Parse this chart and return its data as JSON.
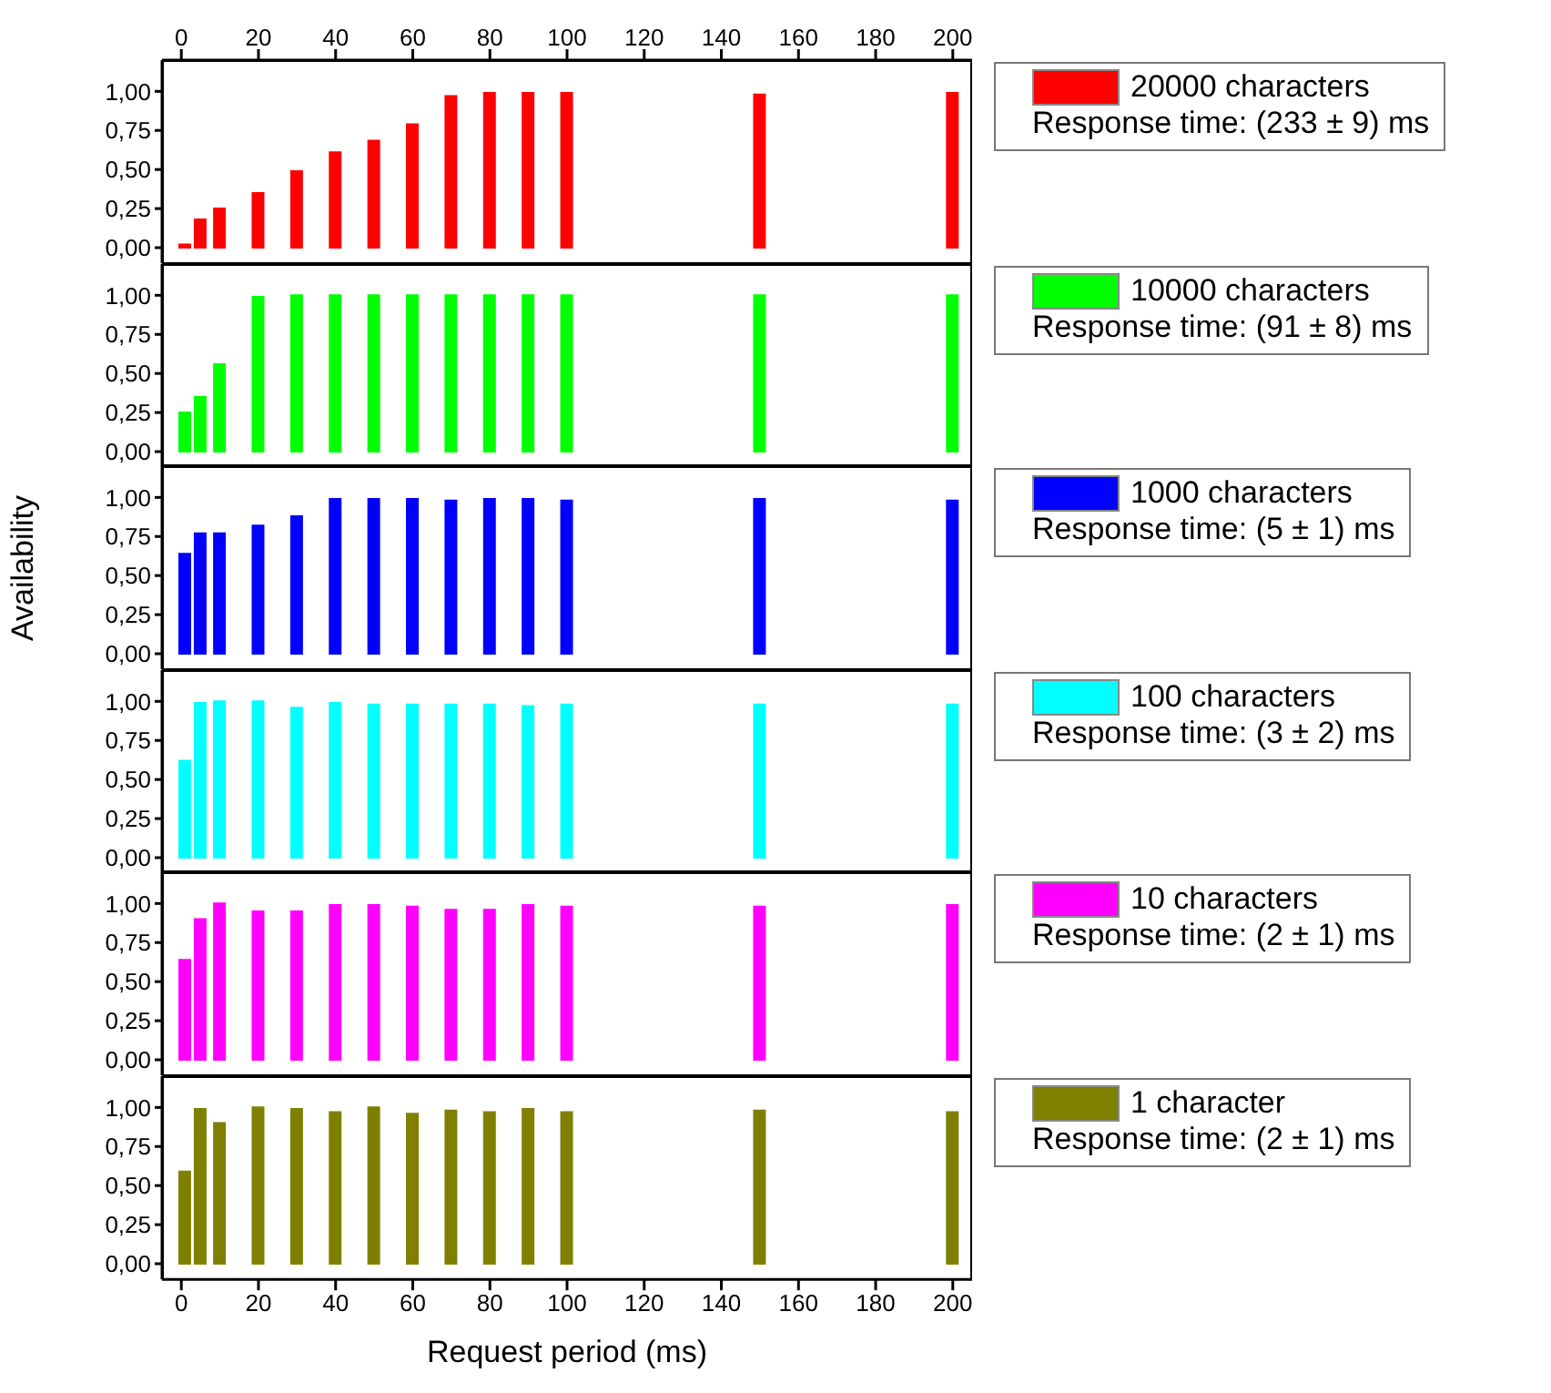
{
  "chart_data": [
    {
      "type": "bar",
      "x": [
        1,
        5,
        10,
        20,
        30,
        40,
        50,
        60,
        70,
        80,
        90,
        100,
        150,
        200
      ],
      "series": [
        {
          "name": "20000 characters",
          "color": "#ff0000",
          "values": [
            0.02,
            0.18,
            0.25,
            0.35,
            0.49,
            0.61,
            0.685,
            0.79,
            0.97,
            0.99,
            0.99,
            0.99,
            0.98,
            0.99
          ]
        }
      ],
      "annotations": [
        "Response time: (233 ± 9) ms"
      ],
      "legend": "right",
      "tick_labels": "y",
      "xlim": [
        -5,
        205
      ],
      "xticks": [
        0,
        20,
        40,
        60,
        80,
        100,
        120,
        140,
        160,
        180,
        200
      ],
      "x2lim": [
        -5,
        205
      ],
      "x2ticks": [
        0,
        20,
        40,
        60,
        80,
        100,
        120,
        140,
        160,
        180,
        200
      ],
      "ylim": [
        -0.1,
        1.2
      ],
      "yticks": [
        {
          "value": 0,
          "label": "0,00"
        },
        {
          "value": 0.25,
          "label": "0,25"
        },
        {
          "value": 0.5,
          "label": "0,50"
        },
        {
          "value": 0.75,
          "label": "0,75"
        },
        {
          "value": 1,
          "label": "1,00"
        }
      ]
    },
    {
      "type": "bar",
      "x": [
        1,
        5,
        10,
        20,
        30,
        40,
        50,
        60,
        70,
        80,
        90,
        100,
        150,
        200
      ],
      "series": [
        {
          "name": "10000 characters",
          "color": "#00ff00",
          "values": [
            0.25,
            0.35,
            0.56,
            0.99,
            1.0,
            1.0,
            1.0,
            1.0,
            1.0,
            1.0,
            1.0,
            1.0,
            1.0,
            1.0
          ]
        }
      ],
      "annotations": [
        "Response time: (91 ± 8) ms"
      ],
      "legend": "right",
      "tick_labels": "y",
      "xlim": [
        -5,
        205
      ],
      "xticks": [
        0,
        20,
        40,
        60,
        80,
        100,
        120,
        140,
        160,
        180,
        200
      ],
      "ylim": [
        -0.1,
        1.2
      ],
      "yticks": [
        {
          "value": 0,
          "label": "0,00"
        },
        {
          "value": 0.25,
          "label": "0,25"
        },
        {
          "value": 0.5,
          "label": "0,50"
        },
        {
          "value": 0.75,
          "label": "0,75"
        },
        {
          "value": 1,
          "label": "1,00"
        }
      ]
    },
    {
      "type": "bar",
      "ylabel": "Availability",
      "x": [
        1,
        5,
        10,
        20,
        30,
        40,
        50,
        60,
        70,
        80,
        90,
        100,
        150,
        200
      ],
      "series": [
        {
          "name": "1000 characters",
          "color": "#0000ff",
          "values": [
            0.64,
            0.77,
            0.77,
            0.82,
            0.88,
            0.99,
            0.99,
            0.99,
            0.98,
            0.99,
            0.99,
            0.98,
            0.99,
            0.98
          ]
        }
      ],
      "annotations": [
        "Response time: (5 ± 1) ms"
      ],
      "legend": "right",
      "tick_labels": "y",
      "xlim": [
        -5,
        205
      ],
      "xticks": [
        0,
        20,
        40,
        60,
        80,
        100,
        120,
        140,
        160,
        180,
        200
      ],
      "ylim": [
        -0.1,
        1.2
      ],
      "yticks": [
        {
          "value": 0,
          "label": "0,00"
        },
        {
          "value": 0.25,
          "label": "0,25"
        },
        {
          "value": 0.5,
          "label": "0,50"
        },
        {
          "value": 0.75,
          "label": "0,75"
        },
        {
          "value": 1,
          "label": "1,00"
        }
      ]
    },
    {
      "type": "bar",
      "x": [
        1,
        5,
        10,
        20,
        30,
        40,
        50,
        60,
        70,
        80,
        90,
        100,
        150,
        200
      ],
      "series": [
        {
          "name": "100 characters",
          "color": "#00ffff",
          "values": [
            0.62,
            0.99,
            1.0,
            1.0,
            0.96,
            0.99,
            0.98,
            0.98,
            0.98,
            0.98,
            0.97,
            0.98,
            0.98,
            0.98
          ]
        }
      ],
      "annotations": [
        "Response time: (3 ± 2) ms"
      ],
      "legend": "right",
      "tick_labels": "y",
      "xlim": [
        -5,
        205
      ],
      "xticks": [
        0,
        20,
        40,
        60,
        80,
        100,
        120,
        140,
        160,
        180,
        200
      ],
      "ylim": [
        -0.1,
        1.2
      ],
      "yticks": [
        {
          "value": 0,
          "label": "0,00"
        },
        {
          "value": 0.25,
          "label": "0,25"
        },
        {
          "value": 0.5,
          "label": "0,50"
        },
        {
          "value": 0.75,
          "label": "0,75"
        },
        {
          "value": 1,
          "label": "1,00"
        }
      ]
    },
    {
      "type": "bar",
      "x": [
        1,
        5,
        10,
        20,
        30,
        40,
        50,
        60,
        70,
        80,
        90,
        100,
        150,
        200
      ],
      "series": [
        {
          "name": "10 characters",
          "color": "#ff00ff",
          "values": [
            0.64,
            0.9,
            1.0,
            0.95,
            0.95,
            0.99,
            0.99,
            0.98,
            0.96,
            0.96,
            0.99,
            0.98,
            0.98,
            0.99
          ]
        }
      ],
      "annotations": [
        "Response time: (2 ± 1) ms"
      ],
      "legend": "right",
      "tick_labels": "y",
      "xlim": [
        -5,
        205
      ],
      "xticks": [
        0,
        20,
        40,
        60,
        80,
        100,
        120,
        140,
        160,
        180,
        200
      ],
      "ylim": [
        -0.1,
        1.2
      ],
      "yticks": [
        {
          "value": 0,
          "label": "0,00"
        },
        {
          "value": 0.25,
          "label": "0,25"
        },
        {
          "value": 0.5,
          "label": "0,50"
        },
        {
          "value": 0.75,
          "label": "0,75"
        },
        {
          "value": 1,
          "label": "1,00"
        }
      ]
    },
    {
      "type": "bar",
      "xlabel": "Request period (ms)",
      "x": [
        1,
        5,
        10,
        20,
        30,
        40,
        50,
        60,
        70,
        80,
        90,
        100,
        150,
        200
      ],
      "series": [
        {
          "name": "1 character",
          "color": "#808000",
          "values": [
            0.59,
            0.99,
            0.9,
            1.0,
            0.99,
            0.97,
            1.0,
            0.96,
            0.98,
            0.97,
            0.99,
            0.97,
            0.98,
            0.97
          ]
        }
      ],
      "annotations": [
        "Response time: (2 ± 1) ms"
      ],
      "legend": "right",
      "xlim": [
        -5,
        205
      ],
      "xticks": [
        0,
        20,
        40,
        60,
        80,
        100,
        120,
        140,
        160,
        180,
        200
      ],
      "ylim": [
        -0.1,
        1.2
      ],
      "yticks": [
        {
          "value": 0,
          "label": "0,00"
        },
        {
          "value": 0.25,
          "label": "0,25"
        },
        {
          "value": 0.5,
          "label": "0,50"
        },
        {
          "value": 0.75,
          "label": "0,75"
        },
        {
          "value": 1,
          "label": "1,00"
        }
      ]
    }
  ]
}
